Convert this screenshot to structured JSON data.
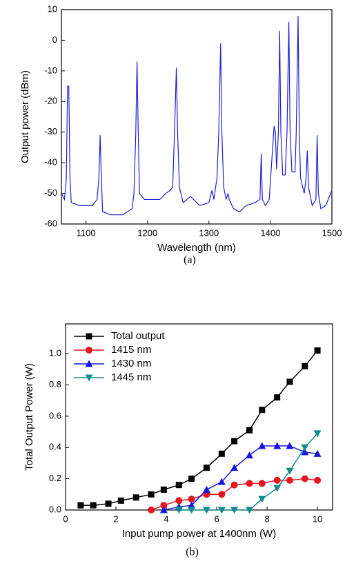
{
  "chart_data": [
    {
      "type": "line",
      "x_label": "Wavelength (nm)",
      "y_label": "Output power (dBm)",
      "caption": "(a)",
      "xlim": [
        1060,
        1500
      ],
      "ylim": [
        -60,
        10
      ],
      "xticks": [
        1100,
        1200,
        1300,
        1400,
        1500
      ],
      "yticks": [
        -60,
        -50,
        -40,
        -30,
        -20,
        -10,
        0,
        10
      ],
      "x": [
        1060,
        1065,
        1068,
        1070,
        1072,
        1074,
        1076,
        1090,
        1110,
        1118,
        1121,
        1123,
        1125,
        1127,
        1140,
        1160,
        1175,
        1178,
        1181,
        1183,
        1185,
        1187,
        1195,
        1210,
        1220,
        1230,
        1237,
        1241,
        1244,
        1247,
        1249,
        1252,
        1258,
        1270,
        1285,
        1300,
        1305,
        1308,
        1313,
        1316,
        1319,
        1321,
        1324,
        1328,
        1331,
        1333,
        1340,
        1350,
        1360,
        1375,
        1383,
        1385,
        1387,
        1392,
        1398,
        1402,
        1406,
        1408,
        1410,
        1413,
        1415,
        1417,
        1420,
        1424,
        1427,
        1430,
        1432,
        1435,
        1440,
        1442,
        1445,
        1447,
        1449,
        1455,
        1458,
        1460,
        1462,
        1468,
        1474,
        1476,
        1478,
        1482,
        1490,
        1496,
        1500
      ],
      "series": [
        {
          "color": "#1f1fd0",
          "values": [
            -50,
            -52,
            -45,
            -15,
            -15,
            -45,
            -53,
            -54,
            -54,
            -52,
            -45,
            -31,
            -45,
            -56,
            -57,
            -57,
            -55,
            -50,
            -30,
            -7,
            -30,
            -50,
            -52,
            -52,
            -52,
            -50,
            -49,
            -48,
            -30,
            -9,
            -30,
            -48,
            -53,
            -51,
            -54,
            -53,
            -49,
            -52,
            -45,
            -30,
            -1,
            -30,
            -48,
            -52,
            -50,
            -52,
            -55,
            -56,
            -54,
            -53,
            -52,
            -37,
            -52,
            -54,
            -52,
            -40,
            -28,
            -30,
            -42,
            -30,
            3,
            -30,
            -44,
            -44,
            -30,
            6,
            -30,
            -43,
            -43,
            -30,
            8,
            -30,
            -45,
            -50,
            -45,
            -36,
            -48,
            -54,
            -52,
            -31,
            -50,
            -55,
            -54,
            -51,
            -49
          ]
        }
      ]
    },
    {
      "type": "line",
      "x_label": "Input pump power at 1400nm (W)",
      "y_label": "Total Output Power (W)",
      "caption": "(b)",
      "xlim": [
        0,
        10.6
      ],
      "ylim": [
        0,
        1.19
      ],
      "xticks": [
        0,
        2,
        4,
        6,
        8,
        10
      ],
      "yticks": [
        {
          "value": 0,
          "label": "0.0"
        },
        0.2,
        0.4,
        0.6,
        0.8,
        {
          "value": 1,
          "label": "1.0"
        }
      ],
      "legend": "upper left",
      "series": [
        {
          "name": "Total output",
          "color": "#000000",
          "marker": "square",
          "x": [
            0.6,
            1.1,
            1.7,
            2.2,
            2.8,
            3.4,
            3.9,
            4.5,
            5.0,
            5.6,
            6.2,
            6.7,
            7.3,
            7.8,
            8.4,
            8.9,
            9.5,
            10
          ],
          "values": [
            0.03,
            0.03,
            0.04,
            0.06,
            0.08,
            0.1,
            0.13,
            0.16,
            0.2,
            0.27,
            0.36,
            0.44,
            0.51,
            0.64,
            0.72,
            0.82,
            0.92,
            1.02
          ]
        },
        {
          "name": "1415 nm",
          "color": "#e8141e",
          "marker": "circle",
          "x": [
            3.4,
            3.9,
            4.5,
            5.0,
            5.6,
            6.2,
            6.7,
            7.3,
            7.8,
            8.4,
            8.9,
            9.5,
            10
          ],
          "values": [
            0.0,
            0.03,
            0.06,
            0.07,
            0.1,
            0.1,
            0.16,
            0.17,
            0.17,
            0.19,
            0.19,
            0.2,
            0.19
          ]
        },
        {
          "name": "1430 nm",
          "color": "#1414e0",
          "marker": "triangle-up",
          "x": [
            3.9,
            4.5,
            5.0,
            5.6,
            6.2,
            6.7,
            7.3,
            7.8,
            8.4,
            8.9,
            9.5,
            10
          ],
          "values": [
            0.0,
            0.02,
            0.03,
            0.13,
            0.18,
            0.27,
            0.35,
            0.41,
            0.41,
            0.41,
            0.37,
            0.36
          ]
        },
        {
          "name": "1445 nm",
          "color": "#148c8c",
          "marker": "triangle-down",
          "x": [
            4.5,
            5.0,
            5.6,
            6.2,
            6.7,
            7.3,
            7.8,
            8.4,
            8.9,
            9.5,
            10
          ],
          "values": [
            0,
            0,
            0,
            0,
            0,
            0,
            0.07,
            0.14,
            0.25,
            0.4,
            0.49
          ]
        }
      ]
    }
  ]
}
